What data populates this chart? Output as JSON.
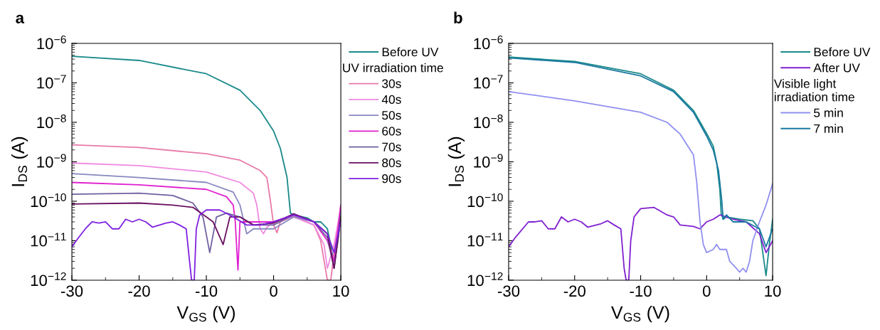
{
  "chart_data": [
    {
      "type": "line",
      "title": "a",
      "xlabel": "V$_{GS}$ (V)",
      "ylabel": "I$_{DS}$ (A)",
      "log": "y",
      "legend": "right",
      "legend_title": "UV irradiation time",
      "grid": false,
      "xlim": [
        -30,
        10
      ],
      "xticks": [
        -30,
        -20,
        -10,
        0,
        10
      ],
      "ylim": [
        1e-12,
        1e-06
      ],
      "yticks": [
        {
          "value": 1e-12,
          "label": "10$^{−12}$"
        },
        {
          "value": 1e-11,
          "label": "10$^{−11}$"
        },
        {
          "value": 1e-10,
          "label": "10$^{−10}$"
        },
        {
          "value": 1e-09,
          "label": "10$^{−9}$"
        },
        {
          "value": 1e-08,
          "label": "10$^{−8}$"
        },
        {
          "value": 1e-07,
          "label": "10$^{−7}$"
        },
        {
          "value": 1e-06,
          "label": "10$^{−6}$"
        }
      ],
      "series": [
        {
          "name": "Before UV",
          "color": "#1a8a8a",
          "x": [
            -30,
            -20,
            -10,
            -5,
            -2,
            0,
            1,
            2,
            2.5,
            3,
            5,
            6,
            7,
            8,
            9,
            9.5,
            10
          ],
          "values": [
            4.7e-07,
            3.7e-07,
            1.7e-07,
            6.5e-08,
            2e-08,
            6e-09,
            2.2e-09,
            4e-10,
            5e-11,
            4.5e-11,
            3.8e-11,
            3e-11,
            3e-11,
            2e-11,
            3e-12,
            8e-12,
            5e-11
          ]
        },
        {
          "name": "30s",
          "color": "#e87aa8",
          "x": [
            -30,
            -20,
            -10,
            -5,
            -2,
            -1,
            -0.5,
            0,
            0.5,
            1,
            3,
            6,
            7,
            8,
            8.5,
            9,
            10
          ],
          "values": [
            2.7e-09,
            2.3e-09,
            1.6e-09,
            1.1e-09,
            6e-10,
            4e-10,
            1.1e-10,
            2.5e-11,
            1.6e-11,
            3e-11,
            4.2e-11,
            2.5e-11,
            1e-11,
            1e-12,
            1e-12,
            5e-12,
            8e-11
          ]
        },
        {
          "name": "40s",
          "color": "#f08ae0",
          "x": [
            -30,
            -20,
            -10,
            -5,
            -3,
            -2.5,
            -2,
            -1.5,
            -1,
            0,
            3,
            6,
            7.5,
            8,
            9,
            10
          ],
          "values": [
            9.3e-10,
            8e-10,
            5.5e-10,
            3e-10,
            1.6e-10,
            8e-11,
            2e-11,
            1.5e-11,
            2.2e-11,
            3e-11,
            4e-11,
            2.5e-11,
            8e-12,
            2e-12,
            8e-12,
            7e-11
          ]
        },
        {
          "name": "50s",
          "color": "#8888c0",
          "x": [
            -30,
            -20,
            -10,
            -6,
            -5,
            -4.5,
            -4,
            -3,
            0,
            3,
            6,
            8,
            9,
            10
          ],
          "values": [
            5e-10,
            4e-10,
            3e-10,
            1.7e-10,
            8e-11,
            3.5e-11,
            1.5e-11,
            2e-11,
            2e-11,
            4e-11,
            3e-11,
            1.5e-11,
            2e-12,
            4e-11
          ]
        },
        {
          "name": "60s",
          "color": "#e020d0",
          "x": [
            -30,
            -20,
            -10,
            -7,
            -6,
            -5.7,
            -5.3,
            -5,
            -4,
            0,
            3,
            6,
            8,
            9,
            10
          ],
          "values": [
            3e-10,
            2.6e-10,
            2e-10,
            1.3e-10,
            8e-11,
            3e-11,
            1.8e-12,
            3e-11,
            3e-11,
            3e-11,
            4.5e-11,
            3e-11,
            1e-11,
            3e-12,
            8e-11
          ]
        },
        {
          "name": "70s",
          "color": "#7060a0",
          "x": [
            -30,
            -20,
            -15,
            -12,
            -10.5,
            -9.5,
            -8.5,
            -7,
            -5,
            -3,
            0,
            3,
            6,
            8,
            9,
            10
          ],
          "values": [
            1.5e-10,
            1.6e-10,
            1.4e-10,
            9e-11,
            4e-11,
            5e-12,
            4e-11,
            5e-11,
            4e-11,
            2.5e-11,
            2.5e-11,
            4.5e-11,
            3e-11,
            1.2e-11,
            2e-12,
            5e-11
          ]
        },
        {
          "name": "80s",
          "color": "#6a1060",
          "x": [
            -30,
            -20,
            -15,
            -12,
            -10,
            -9,
            -7.5,
            -6.5,
            -5,
            -3,
            0,
            3,
            6,
            8,
            9,
            10
          ],
          "values": [
            8.5e-11,
            9e-11,
            8e-11,
            7e-11,
            4e-11,
            3e-11,
            8e-12,
            4e-11,
            4e-11,
            2.5e-11,
            2.8e-11,
            4.8e-11,
            3e-11,
            1.5e-11,
            2e-12,
            4e-11
          ]
        },
        {
          "name": "90s",
          "color": "#8020e0",
          "x": [
            -30,
            -29,
            -28,
            -27,
            -26,
            -25,
            -24,
            -23,
            -22,
            -21,
            -20,
            -19,
            -18,
            -16,
            -15,
            -14,
            -13,
            -12.5,
            -12.2,
            -11.8,
            -11.5,
            -11,
            -10,
            -8,
            -6,
            -4,
            -2,
            0,
            3,
            6,
            8,
            9,
            10
          ],
          "values": [
            7e-12,
            1.2e-11,
            2e-11,
            3e-11,
            2.8e-11,
            3e-11,
            2e-11,
            2e-11,
            3.5e-11,
            3e-11,
            3.5e-11,
            3e-11,
            2.2e-11,
            2.8e-11,
            3e-11,
            2.5e-11,
            2e-11,
            3e-12,
            1e-12,
            1e-12,
            2e-11,
            4.5e-11,
            6e-11,
            6e-11,
            4e-11,
            2.5e-11,
            2.5e-11,
            3e-11,
            4.5e-11,
            3e-11,
            1.5e-11,
            5e-12,
            3e-11
          ]
        }
      ]
    },
    {
      "type": "line",
      "title": "b",
      "xlabel": "V$_{GS}$ (V)",
      "ylabel": "I$_{DS}$ (A)",
      "log": "y",
      "legend": "right",
      "legend_title": "Visible light\nirradiation time",
      "grid": false,
      "xlim": [
        -30,
        10
      ],
      "xticks": [
        -30,
        -20,
        -10,
        0,
        10
      ],
      "ylim": [
        1e-12,
        1e-06
      ],
      "yticks": [
        {
          "value": 1e-12,
          "label": "10$^{−12}$"
        },
        {
          "value": 1e-11,
          "label": "10$^{−11}$"
        },
        {
          "value": 1e-10,
          "label": "10$^{−10}$"
        },
        {
          "value": 1e-09,
          "label": "10$^{−9}$"
        },
        {
          "value": 1e-08,
          "label": "10$^{−8}$"
        },
        {
          "value": 1e-07,
          "label": "10$^{−7}$"
        },
        {
          "value": 1e-06,
          "label": "10$^{−6}$"
        }
      ],
      "series": [
        {
          "name": "Before UV",
          "color": "#1a8a8a",
          "x": [
            -30,
            -20,
            -10,
            -5,
            -2,
            0,
            1,
            1.5,
            2,
            2.2,
            2.5,
            3,
            5,
            7,
            8,
            9,
            9.5,
            10
          ],
          "values": [
            4.5e-07,
            3.5e-07,
            1.7e-07,
            6.5e-08,
            2e-08,
            5.2e-09,
            2.5e-09,
            1e-09,
            2e-10,
            5e-11,
            3.5e-11,
            4e-11,
            3.5e-11,
            3.2e-11,
            2e-11,
            1.3e-12,
            8e-12,
            3.5e-11
          ]
        },
        {
          "name": "After UV",
          "color": "#8020d0",
          "x": [
            -30,
            -29,
            -27,
            -26,
            -25,
            -24,
            -23,
            -22,
            -21,
            -20,
            -19,
            -18,
            -16,
            -15,
            -14,
            -13,
            -12.5,
            -12.2,
            -11.8,
            -11.5,
            -11,
            -10,
            -8,
            -6,
            -5,
            -4,
            -2,
            -1,
            0,
            1,
            2,
            4,
            6,
            8,
            9,
            10
          ],
          "values": [
            7e-12,
            1.2e-11,
            3e-11,
            3e-11,
            3.2e-11,
            2e-11,
            2e-11,
            4e-11,
            3e-11,
            3.5e-11,
            3e-11,
            2.2e-11,
            2.7e-11,
            3.2e-11,
            2.5e-11,
            2e-11,
            2e-12,
            1e-12,
            1e-12,
            1e-11,
            4e-11,
            6.5e-11,
            7e-11,
            4.5e-11,
            4e-11,
            2.5e-11,
            2.3e-11,
            2e-11,
            3e-11,
            3.5e-11,
            4.5e-11,
            3.5e-11,
            3e-11,
            1.5e-11,
            5e-12,
            1e-11
          ]
        },
        {
          "name": "5 min",
          "color": "#9090f0",
          "x": [
            -30,
            -20,
            -10,
            -6,
            -4,
            -2,
            -1.5,
            -1,
            -0.5,
            0,
            1,
            1.5,
            2,
            3,
            3.5,
            4.5,
            5,
            5.5,
            6,
            6.5,
            7,
            8,
            9,
            10
          ],
          "values": [
            6e-08,
            3.5e-08,
            1.8e-08,
            1e-08,
            5e-09,
            1.5e-09,
            3e-10,
            3e-11,
            8e-12,
            5e-12,
            6e-12,
            8e-12,
            6e-12,
            6e-12,
            3e-12,
            2e-12,
            1.6e-12,
            2e-12,
            1.6e-12,
            3e-12,
            1e-11,
            3e-11,
            8e-11,
            2.8e-10
          ]
        },
        {
          "name": "7 min",
          "color": "#1878a0",
          "x": [
            -30,
            -20,
            -10,
            -5,
            -2,
            0,
            1,
            1.8,
            2.3,
            2.5,
            3,
            4,
            6,
            8,
            9,
            10
          ],
          "values": [
            4.3e-07,
            3.3e-07,
            1.5e-07,
            6e-08,
            1.8e-08,
            4.5e-09,
            2e-09,
            6e-10,
            1e-10,
            3.5e-11,
            4.5e-11,
            3e-11,
            3e-11,
            2e-11,
            7e-12,
            2e-11
          ]
        }
      ]
    }
  ]
}
